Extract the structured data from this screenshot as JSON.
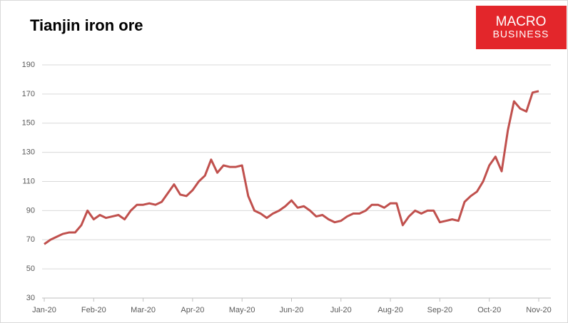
{
  "chart_data": {
    "type": "line",
    "title": "Tianjin iron ore",
    "logo": [
      "MACRO",
      "BUSINESS"
    ],
    "categories": [
      "Jan-20",
      null,
      null,
      null,
      null,
      null,
      null,
      null,
      "Feb-20",
      null,
      null,
      null,
      null,
      null,
      null,
      null,
      "Mar-20",
      null,
      null,
      null,
      null,
      null,
      null,
      null,
      "Apr-20",
      null,
      null,
      null,
      null,
      null,
      null,
      null,
      "May-20",
      null,
      null,
      null,
      null,
      null,
      null,
      null,
      "Jun-20",
      null,
      null,
      null,
      null,
      null,
      null,
      null,
      "Jul-20",
      null,
      null,
      null,
      null,
      null,
      null,
      null,
      "Aug-20",
      null,
      null,
      null,
      null,
      null,
      null,
      null,
      "Sep-20",
      null,
      null,
      null,
      null,
      null,
      null,
      null,
      "Oct-20",
      null,
      null,
      null,
      null,
      null,
      null,
      null,
      "Nov-20"
    ],
    "series": [
      {
        "name": "Tianjin iron ore",
        "color": "#c0504d",
        "values": [
          67,
          70,
          72,
          74,
          75,
          75,
          80,
          90,
          84,
          87,
          85,
          86,
          87,
          84,
          90,
          94,
          94,
          95,
          94,
          96,
          102,
          108,
          101,
          100,
          104,
          110,
          114,
          125,
          116,
          121,
          120,
          120,
          121,
          100,
          90,
          88,
          85,
          88,
          90,
          93,
          97,
          92,
          93,
          90,
          86,
          87,
          84,
          82,
          83,
          86,
          88,
          88,
          90,
          94,
          94,
          92,
          95,
          95,
          80,
          86,
          90,
          88,
          90,
          90,
          82,
          83,
          84,
          83,
          96,
          100,
          103,
          110,
          121,
          127,
          117,
          145,
          165,
          160,
          158,
          171,
          172
        ]
      }
    ],
    "ylim": [
      30,
      190
    ],
    "yticks": [
      30,
      50,
      70,
      90,
      110,
      130,
      150,
      170,
      190
    ],
    "grid": true
  }
}
